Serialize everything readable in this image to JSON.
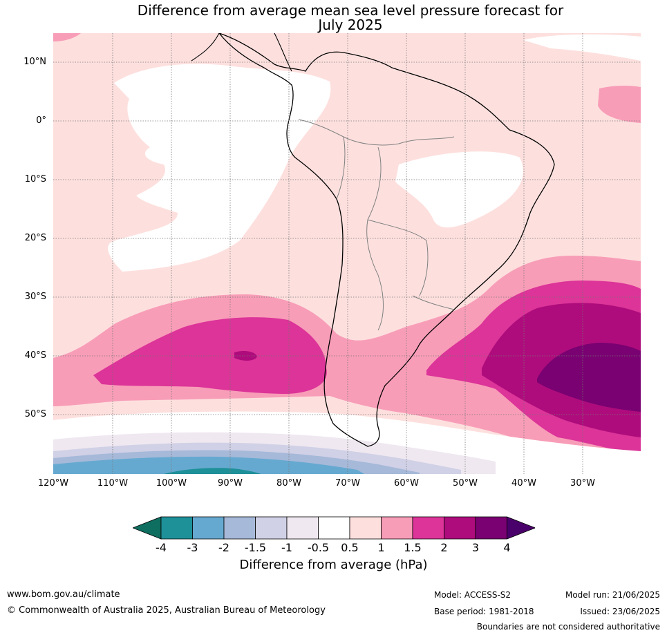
{
  "title_line1": "Difference from average mean sea level pressure forecast for",
  "title_line2": "July 2025",
  "lat_labels": [
    "10°N",
    "0°",
    "10°S",
    "20°S",
    "30°S",
    "40°S",
    "50°S"
  ],
  "lon_labels": [
    "120°W",
    "110°W",
    "100°W",
    "90°W",
    "80°W",
    "70°W",
    "60°W",
    "50°W",
    "40°W",
    "30°W"
  ],
  "legend": {
    "title": "Difference from average (hPa)",
    "ticks": [
      "-4",
      "-3",
      "-2",
      "-1.5",
      "-1",
      "-0.5",
      "0.5",
      "1",
      "1.5",
      "2",
      "3",
      "4"
    ],
    "colors": [
      "#0e6e5f",
      "#1e9098",
      "#66a9d0",
      "#a6b9d9",
      "#d0d0e6",
      "#efe8f0",
      "#ffffff",
      "#fde0de",
      "#f89db8",
      "#dc3498",
      "#ae0c7c",
      "#790171",
      "#4a006a"
    ]
  },
  "footer": {
    "website": "www.bom.gov.au/climate",
    "copyright": "© Commonwealth of Australia 2025, Australian Bureau of Meteorology",
    "model": "Model: ACCESS-S2",
    "base_period": "Base period: 1981-2018",
    "model_run": "Model run: 21/06/2025",
    "issued": "Issued: 23/06/2025",
    "disclaimer": "Boundaries are not considered authoritative"
  }
}
